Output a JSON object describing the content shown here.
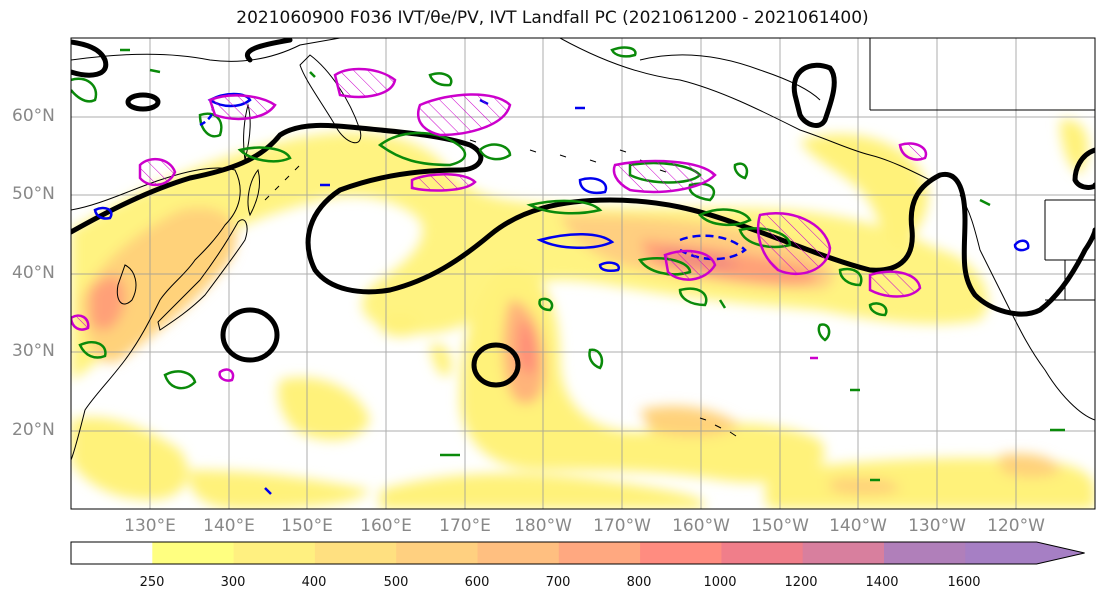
{
  "title": "2021060900 F036 IVT/θe/PV, IVT Landfall PC (2021061200 - 2021061400)",
  "map": {
    "lat_labels": [
      "60°N",
      "50°N",
      "40°N",
      "30°N",
      "20°N"
    ],
    "lon_labels": [
      "130°E",
      "140°E",
      "150°E",
      "160°E",
      "170°E",
      "180°W",
      "170°W",
      "160°W",
      "150°W",
      "140°W",
      "130°W",
      "120°W"
    ],
    "extent": {
      "lon_min": 120,
      "lon_max": 250,
      "lat_min": 10,
      "lat_max": 70
    },
    "colors": {
      "coastline": "#000000",
      "gridline": "#999999",
      "pv_contour": "#000000",
      "theta_e_green": "#008000",
      "theta_e_blue": "#0000ff",
      "landfall_magenta": "#cc00cc",
      "label_gray": "#888888"
    }
  },
  "colorbar": {
    "ticks": [
      "250",
      "300",
      "400",
      "500",
      "600",
      "700",
      "800",
      "1000",
      "1200",
      "1400",
      "1600"
    ],
    "colors": [
      "#ffffff",
      "#ffff80",
      "#fff080",
      "#ffe080",
      "#ffd080",
      "#ffbf80",
      "#ffa880",
      "#ff8c80",
      "#f07e8a",
      "#d87f9e",
      "#b07fba",
      "#a67fc4"
    ]
  },
  "chart_data": {
    "type": "heatmap",
    "title": "2021060900 F036 IVT/θe/PV, IVT Landfall PC (2021061200 - 2021061400)",
    "colorbar_levels": [
      250,
      300,
      400,
      500,
      600,
      700,
      800,
      1000,
      1200,
      1400,
      1600
    ],
    "colorbar_extend": "max",
    "lon_range": [
      120,
      250
    ],
    "lat_range": [
      10,
      70
    ],
    "grid": true
  }
}
